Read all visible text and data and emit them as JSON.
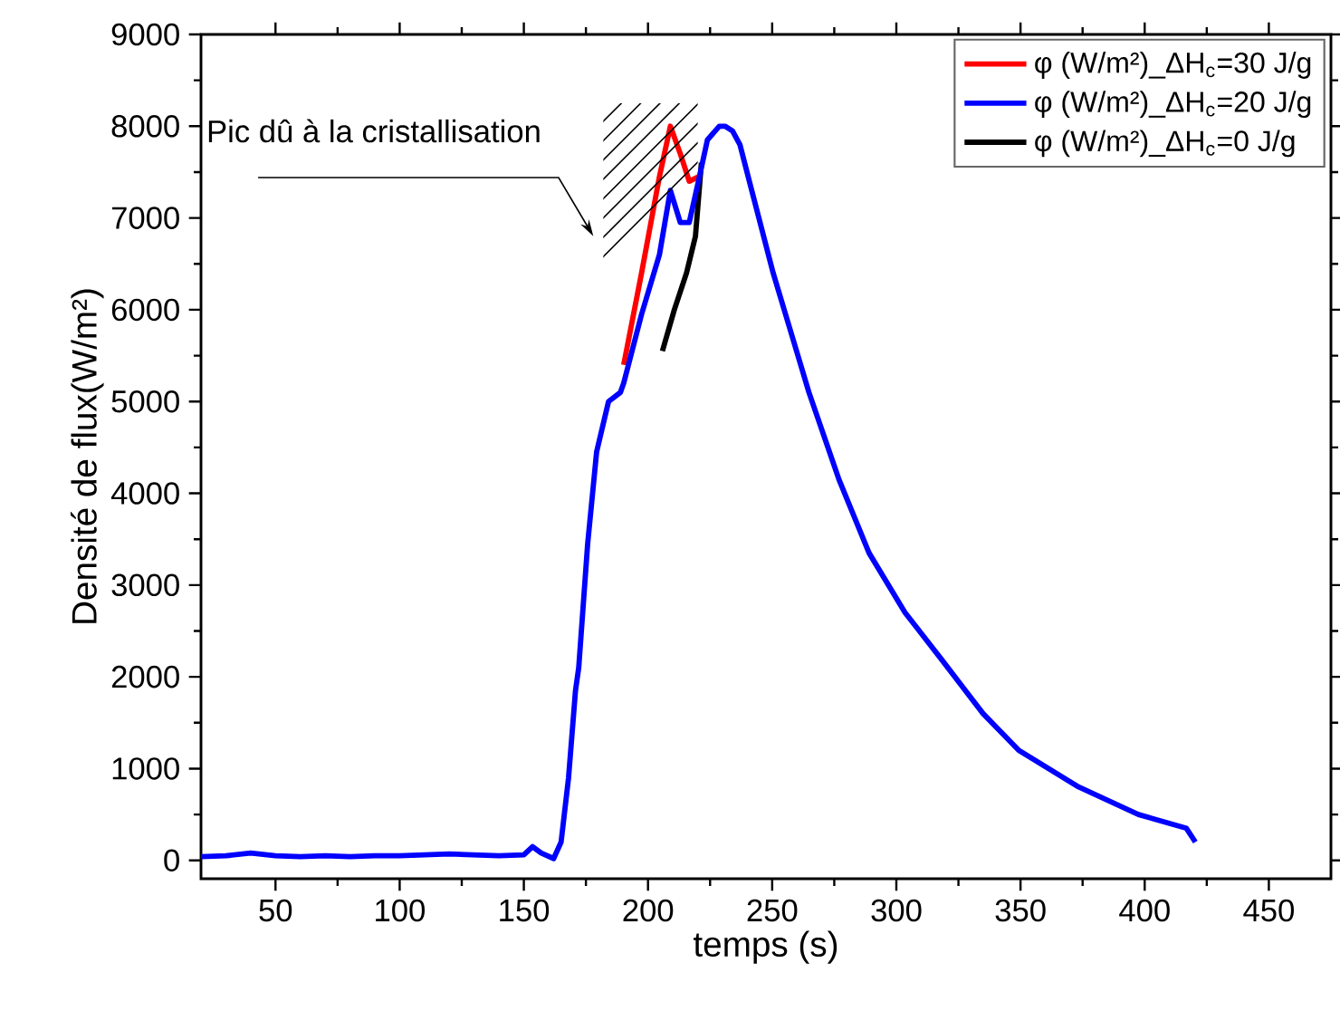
{
  "chart_data": {
    "type": "line",
    "xlabel": "temps (s)",
    "ylabel": "Densité de flux(W/m²)",
    "xlim": [
      20,
      475
    ],
    "ylim": [
      -200,
      9000
    ],
    "xticks": [
      50,
      100,
      150,
      200,
      250,
      300,
      350,
      400,
      450
    ],
    "yticks": [
      0,
      1000,
      2000,
      3000,
      4000,
      5000,
      6000,
      7000,
      8000,
      9000
    ],
    "legend": "top right",
    "marker": "none",
    "line_style": "solid",
    "grid": false,
    "annotations": [
      "Pic dû à la cristallisation"
    ],
    "series": [
      {
        "name": "φ (W/m²)_ΔH$_{c}$=30 J/g",
        "color": "#ff0000",
        "x": [
          190.2,
          197.4,
          204.6,
          209,
          213,
          216.6,
          220.3
        ],
        "values": [
          5400,
          6400,
          7450,
          8000,
          7700,
          7400,
          7450
        ]
      },
      {
        "name": "φ (W/m²)_ΔH$_{c}$=20 J/g",
        "color": "#0000ff",
        "x": [
          20,
          30,
          40,
          50,
          60,
          70,
          80,
          90,
          100,
          110,
          120,
          130,
          140,
          150,
          153.5,
          157,
          162,
          165,
          168,
          170.8,
          172.1,
          175.7,
          179.3,
          184.1,
          188.9,
          190.2,
          197.4,
          204.6,
          209,
          213,
          216.6,
          220.3,
          223.9,
          228.7,
          231,
          234,
          237,
          240.8,
          250.4,
          257.6,
          264.8,
          276.9,
          289,
          303.5,
          317.9,
          334.9,
          349.3,
          373.4,
          397.5,
          416.8,
          420.4
        ],
        "values": [
          40,
          50,
          80,
          50,
          40,
          50,
          40,
          50,
          50,
          60,
          70,
          60,
          50,
          60,
          150,
          80,
          20,
          200,
          900,
          1850,
          2100,
          3450,
          4450,
          5000,
          5100,
          5200,
          5950,
          6600,
          7300,
          6950,
          6950,
          7400,
          7850,
          8000,
          8000,
          7950,
          7800,
          7400,
          6400,
          5750,
          5100,
          4150,
          3350,
          2700,
          2200,
          1600,
          1200,
          800,
          500,
          350,
          200
        ]
      },
      {
        "name": "φ (W/m²)_ΔH$_{c}$=0 J/g",
        "color": "#000000",
        "x": [
          205.8,
          210.6,
          215.5,
          219.1,
          221.5
        ],
        "values": [
          5550,
          6000,
          6400,
          6800,
          7600
        ]
      }
    ]
  }
}
